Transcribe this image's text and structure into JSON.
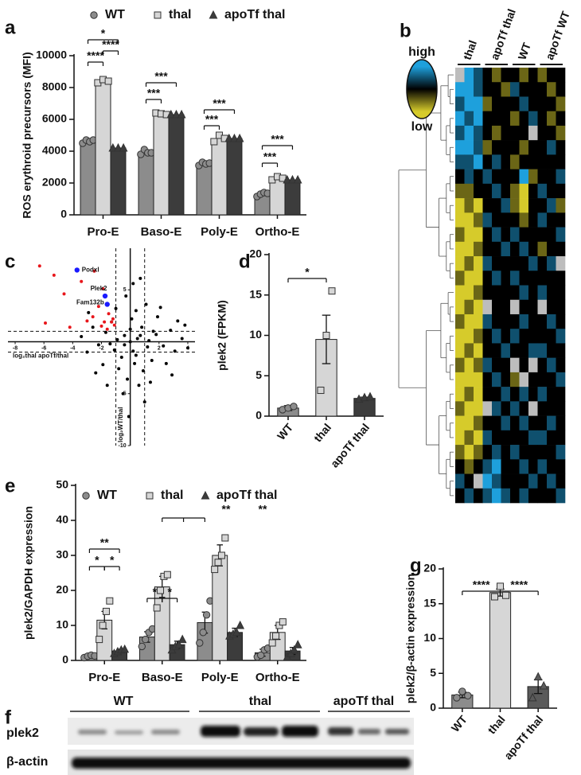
{
  "panel_labels": [
    "a",
    "b",
    "c",
    "d",
    "e",
    "f",
    "g"
  ],
  "blot": {
    "groups": [
      "WT",
      "thal",
      "apoTf thal"
    ],
    "rows": [
      "plek2",
      "β-actin"
    ]
  },
  "chart_data": [
    {
      "type": "bar",
      "y_label": "ROS erythroid precursors (MFI)",
      "categories": [
        "Pro-E",
        "Baso-E",
        "Poly-E",
        "Ortho-E"
      ],
      "ylim": [
        0,
        10000
      ],
      "yticks": [
        0,
        2000,
        4000,
        6000,
        8000,
        10000
      ],
      "series": [
        {
          "name": "WT",
          "color": "#8c8c8c",
          "marker": "circle",
          "values": [
            4600,
            3900,
            3200,
            1300
          ],
          "points": [
            [
              4500,
              4700,
              4600,
              4700
            ],
            [
              3800,
              4100,
              3900,
              3900
            ],
            [
              3100,
              3300,
              3200,
              3250
            ],
            [
              1150,
              1300,
              1400,
              1350
            ]
          ]
        },
        {
          "name": "thal",
          "color": "#d6d6d6",
          "marker": "square",
          "values": [
            8400,
            6350,
            4800,
            2300
          ],
          "points": [
            [
              8300,
              8500,
              8400
            ],
            [
              6400,
              6350,
              6300
            ],
            [
              4600,
              5000,
              4800
            ],
            [
              2200,
              2400,
              2300
            ]
          ]
        },
        {
          "name": "apoTf thal",
          "color": "#3c3c3c",
          "marker": "triangle",
          "values": [
            4200,
            6300,
            4800,
            2200
          ],
          "points": [
            [
              4200,
              4200,
              4200
            ],
            [
              6300,
              6300,
              6300
            ],
            [
              4800,
              4800,
              4800
            ],
            [
              2200,
              2200,
              2200
            ]
          ]
        }
      ],
      "annotations": [
        "*",
        "****",
        "****",
        "***",
        "***",
        "***",
        "***",
        "***",
        "***"
      ]
    },
    {
      "type": "heatmap",
      "column_groups": [
        "thal",
        "apoTf thal",
        "WT",
        "apoTf WT"
      ],
      "legend_labels": [
        "high",
        "low"
      ],
      "colors": {
        "high": "#1ea0dc",
        "mid": "#000000",
        "low": "#d6cb2b",
        "missing": "#bdbdbd"
      },
      "values": [
        [
          null,
          2,
          1,
          0,
          -1,
          0,
          0,
          -1,
          0,
          -1,
          0,
          0
        ],
        [
          2,
          2,
          1,
          0,
          0,
          -1,
          1,
          0,
          0,
          0,
          -1,
          0
        ],
        [
          1,
          2,
          2,
          -1,
          0,
          0,
          0,
          1,
          0,
          0,
          0,
          -1
        ],
        [
          2,
          1,
          2,
          0,
          0,
          0,
          -1,
          0,
          1,
          0,
          -1,
          0
        ],
        [
          1,
          2,
          1,
          0,
          -1,
          0,
          0,
          0,
          null,
          0,
          0,
          -1
        ],
        [
          2,
          2,
          1,
          -1,
          0,
          0,
          0,
          -1,
          0,
          0,
          1,
          0
        ],
        [
          1,
          1,
          2,
          0,
          1,
          0,
          -1,
          0,
          0,
          0,
          0,
          0
        ],
        [
          0,
          1,
          0,
          1,
          0,
          0,
          0,
          2,
          -1,
          0,
          0,
          1
        ],
        [
          -1,
          -1,
          0,
          0,
          1,
          0,
          -1,
          -2,
          0,
          1,
          0,
          0
        ],
        [
          -2,
          -1,
          -2,
          0,
          0,
          1,
          -1,
          -2,
          0,
          0,
          1,
          -1
        ],
        [
          -2,
          -2,
          -1,
          1,
          0,
          0,
          0,
          -1,
          0,
          1,
          0,
          0
        ],
        [
          -1,
          -2,
          -2,
          0,
          1,
          0,
          1,
          0,
          0,
          0,
          0,
          1
        ],
        [
          -2,
          -2,
          -1,
          0,
          0,
          1,
          0,
          1,
          0,
          -1,
          0,
          0
        ],
        [
          -2,
          -1,
          -2,
          1,
          0,
          0,
          0,
          0,
          1,
          0,
          1,
          null
        ],
        [
          -1,
          -2,
          -2,
          0,
          1,
          0,
          1,
          0,
          0,
          0,
          0,
          0
        ],
        [
          -2,
          -2,
          -1,
          0,
          0,
          0,
          0,
          1,
          0,
          1,
          0,
          0
        ],
        [
          -2,
          -1,
          -2,
          null,
          0,
          0,
          null,
          0,
          0,
          null,
          0,
          0
        ],
        [
          -1,
          -2,
          -2,
          1,
          0,
          0,
          0,
          1,
          0,
          0,
          1,
          0
        ],
        [
          -2,
          -2,
          -1,
          0,
          1,
          0,
          1,
          0,
          0,
          0,
          0,
          1
        ],
        [
          -2,
          -1,
          -2,
          0,
          0,
          1,
          0,
          0,
          1,
          1,
          0,
          0
        ],
        [
          -1,
          -2,
          -1,
          1,
          0,
          0,
          null,
          0,
          null,
          0,
          1,
          0
        ],
        [
          -2,
          -2,
          -2,
          0,
          1,
          0,
          -1,
          null,
          0,
          0,
          0,
          1
        ],
        [
          -2,
          -1,
          -2,
          0,
          0,
          1,
          0,
          1,
          0,
          1,
          0,
          0
        ],
        [
          -1,
          -2,
          -2,
          null,
          1,
          0,
          1,
          0,
          null,
          0,
          0,
          0
        ],
        [
          -2,
          -2,
          -1,
          0,
          0,
          1,
          0,
          1,
          0,
          0,
          1,
          0
        ],
        [
          -2,
          -1,
          -2,
          1,
          0,
          0,
          0,
          0,
          1,
          1,
          0,
          0
        ],
        [
          -1,
          -2,
          -1,
          0,
          1,
          0,
          1,
          0,
          0,
          0,
          0,
          1
        ],
        [
          0,
          -1,
          0,
          1,
          2,
          0,
          0,
          1,
          0,
          1,
          0,
          0
        ],
        [
          1,
          0,
          null,
          2,
          1,
          0,
          0,
          0,
          1,
          0,
          1,
          0
        ],
        [
          0,
          1,
          0,
          1,
          2,
          1,
          0,
          1,
          0,
          0,
          0,
          1
        ]
      ]
    },
    {
      "type": "scatter",
      "x_label": "log₂thal apoTf/thal",
      "y_label": "log₂WT/thal",
      "xlim": [
        -8.5,
        4.5
      ],
      "ylim": [
        -10,
        9
      ],
      "xticks": [
        -8,
        -6,
        -4,
        -2,
        2,
        4
      ],
      "yticks": [
        5,
        -5,
        -10
      ],
      "x_thresholds": [
        -1,
        1
      ],
      "y_thresholds": [
        -1,
        1
      ],
      "series": [
        {
          "color": "#000000",
          "x": [
            0,
            0.5,
            -0.4,
            1.2,
            -1.1,
            0.8,
            -0.6,
            1.8,
            -1.7,
            0.3,
            2.3,
            -2.2,
            0.1,
            1.5,
            -1.3,
            2.8,
            -2.6,
            0.9,
            -0.8,
            3.1,
            -3.0,
            0.4,
            1.9,
            -1.9,
            2.5,
            3.6,
            -0.2,
            1.1,
            -1.0,
            0.6,
            -0.3,
            2.1,
            -2.4,
            3.3,
            -3.4,
            1.4,
            0.2,
            -0.5,
            4.0,
            2.9,
            -1.6,
            0.7,
            1.0,
            -0.1,
            3.8,
            -2.9,
            1.6,
            -0.9,
            0.2,
            -0.4,
            0.7,
            1.3,
            -1.4,
            0.0,
            0.4
          ],
          "values": [
            0,
            0.3,
            0.6,
            -0.5,
            -0.8,
            1.4,
            -1.5,
            0.7,
            0.9,
            -2.1,
            -0.4,
            -0.3,
            2.2,
            -1.8,
            1.9,
            1.1,
            1.4,
            -2.8,
            -2.6,
            -0.9,
            -1.0,
            3.0,
            2.4,
            -2.2,
            -2.1,
            0.3,
            -3.6,
            3.6,
            3.2,
            -4.2,
            4.4,
            3.3,
            -3.0,
            2.0,
            0.5,
            -3.9,
            5.6,
            -5.0,
            -0.6,
            -3.2,
            -4.2,
            6.1,
            -5.8,
            -7.2,
            1.6,
            2.8,
            1.0,
            0.2,
            -0.9,
            -0.3,
            0.6,
            0.1,
            -0.2,
            1.2,
            -1.3
          ]
        },
        {
          "color": "#e8161b",
          "x": [
            -6.3,
            -5.3,
            -4.6,
            -3.4,
            -2.5,
            -1.9,
            -2.2,
            -1.5,
            -1.2,
            -1.1,
            -2.0,
            -1.6,
            -3.0,
            -4.2,
            -5.9,
            -1.3,
            -2.6,
            -1.8
          ],
          "values": [
            7.3,
            6.4,
            4.6,
            5.8,
            6.8,
            5.1,
            3.4,
            2.7,
            2.2,
            1.6,
            1.5,
            1.2,
            2.0,
            1.4,
            1.8,
            1.9,
            2.4,
            1.9
          ]
        },
        {
          "color": "#1a1aff",
          "x": [
            -3.7,
            -1.75,
            -1.6
          ],
          "values": [
            6.9,
            4.4,
            3.6
          ],
          "labels": [
            "Podxl",
            "Plek2",
            "Fam132b"
          ]
        }
      ]
    },
    {
      "type": "bar",
      "y_label": "plek2 (FPKM)",
      "categories": [
        "WT",
        "thal",
        "apoTf thal"
      ],
      "ylim": [
        0,
        20
      ],
      "yticks": [
        0,
        5,
        10,
        15,
        20
      ],
      "colors": [
        "#8c8c8c",
        "#d6d6d6",
        "#3c3c3c"
      ],
      "markers": [
        "circle",
        "square",
        "triangle"
      ],
      "values": [
        1.0,
        9.5,
        2.2
      ],
      "errors": [
        0.3,
        3.0,
        0.15
      ],
      "points": [
        [
          0.8,
          1.0,
          1.2
        ],
        [
          3.2,
          10,
          15.5
        ],
        [
          2.1,
          2.3,
          2.4
        ]
      ],
      "annotations": [
        "*"
      ]
    },
    {
      "type": "bar",
      "y_label": "plek2/GAPDH expression",
      "categories": [
        "Pro-E",
        "Baso-E",
        "Poly-E",
        "Ortho-E"
      ],
      "ylim": [
        0,
        50
      ],
      "yticks": [
        0,
        10,
        20,
        30,
        40,
        50
      ],
      "series": [
        {
          "name": "WT",
          "color": "#8c8c8c",
          "marker": "circle",
          "values": [
            1.2,
            6.7,
            10.8,
            2.2
          ],
          "errors": [
            0.3,
            1.5,
            3.0,
            1.0
          ],
          "points": [
            [
              0.8,
              1.2,
              1.5,
              1.3
            ],
            [
              4,
              6,
              8,
              9
            ],
            [
              5,
              8,
              13,
              17
            ],
            [
              1,
              1.5,
              3,
              3.5
            ]
          ]
        },
        {
          "name": "thal",
          "color": "#d6d6d6",
          "marker": "square",
          "values": [
            11.5,
            21,
            30,
            8
          ],
          "errors": [
            2.5,
            3.0,
            3.0,
            2.0
          ],
          "points": [
            [
              6,
              10,
              14,
              17
            ],
            [
              15,
              20,
              24,
              24.5
            ],
            [
              26,
              28,
              30,
              35
            ],
            [
              5,
              7,
              10,
              11
            ]
          ]
        },
        {
          "name": "apoTf thal",
          "color": "#3c3c3c",
          "marker": "triangle",
          "values": [
            2.7,
            4.5,
            8,
            2.7
          ],
          "errors": [
            0.5,
            1.0,
            1.2,
            1.0
          ],
          "points": [
            [
              2,
              2.5,
              3,
              3.2
            ],
            [
              3,
              4,
              4.5,
              6
            ],
            [
              7,
              7.5,
              8,
              10
            ],
            [
              1,
              2,
              3,
              4.5
            ]
          ]
        }
      ],
      "annotations": [
        "**",
        "*",
        "*",
        "*",
        "*",
        "**",
        "**"
      ]
    },
    {
      "type": "bar",
      "y_label": "plek2/β-actin expression",
      "categories": [
        "WT",
        "thal",
        "apoTf thal"
      ],
      "ylim": [
        0,
        20
      ],
      "yticks": [
        0,
        5,
        10,
        15,
        20
      ],
      "colors": [
        "#8c8c8c",
        "#d6d6d6",
        "#5a5a5a"
      ],
      "markers": [
        "circle",
        "square",
        "triangle"
      ],
      "values": [
        1.9,
        16.6,
        3.1
      ],
      "errors": [
        0.4,
        0.5,
        1.0
      ],
      "points": [
        [
          1.5,
          2.4,
          1.8
        ],
        [
          16,
          17.5,
          16.2
        ],
        [
          1.5,
          4.5,
          3.2
        ]
      ],
      "annotations": [
        "****",
        "****"
      ]
    }
  ]
}
